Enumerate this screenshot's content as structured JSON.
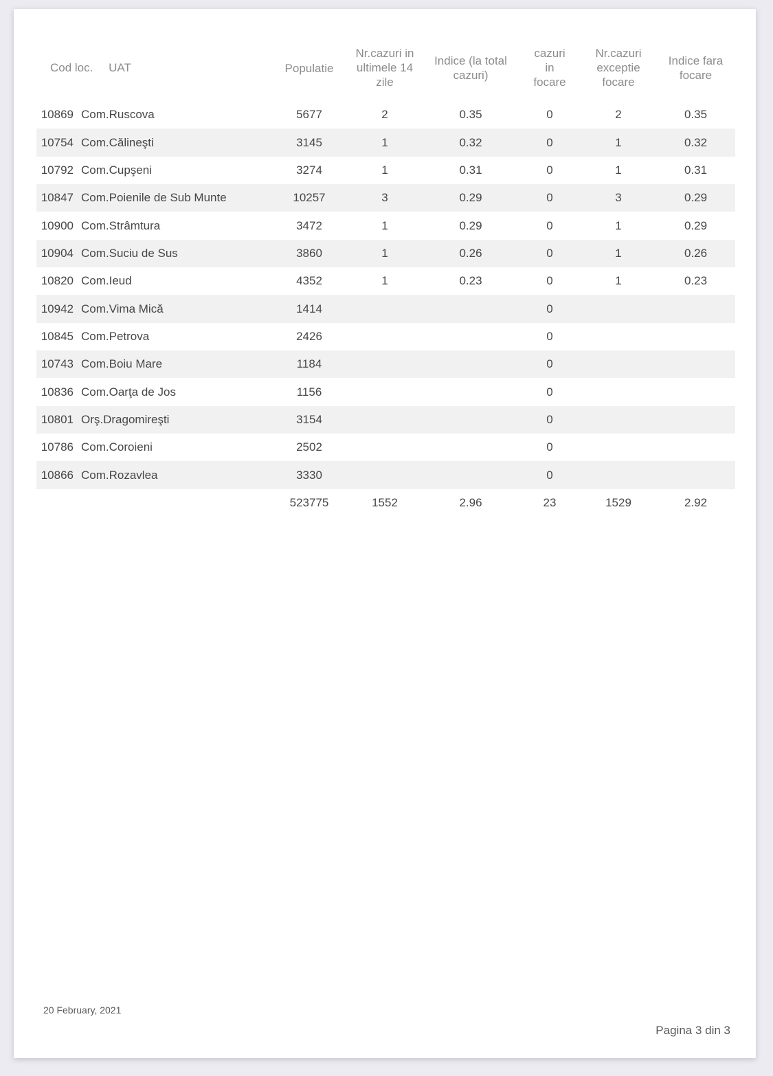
{
  "colors": {
    "page_background": "#ffffff",
    "outer_background": "#ebebf1",
    "row_stripe": "#f1f1f1",
    "body_text": "#474747",
    "header_text": "#8c8c8c"
  },
  "table": {
    "headers": {
      "cod": "Cod loc.",
      "uat": "UAT",
      "populatie": "Populatie",
      "cazuri14": "Nr.cazuri in ultimele 14 zile",
      "indice": "Indice (la total cazuri)",
      "focare": "cazuri in focare",
      "exceptie": "Nr.cazuri exceptie focare",
      "indiceFara": "Indice fara focare"
    },
    "rows": [
      {
        "cod": "10869",
        "uat": "Com.Ruscova",
        "populatie": "5677",
        "cazuri14": "2",
        "indice": "0.35",
        "focare": "0",
        "exceptie": "2",
        "indiceFara": "0.35"
      },
      {
        "cod": "10754",
        "uat": "Com.Călineşti",
        "populatie": "3145",
        "cazuri14": "1",
        "indice": "0.32",
        "focare": "0",
        "exceptie": "1",
        "indiceFara": "0.32"
      },
      {
        "cod": "10792",
        "uat": "Com.Cupşeni",
        "populatie": "3274",
        "cazuri14": "1",
        "indice": "0.31",
        "focare": "0",
        "exceptie": "1",
        "indiceFara": "0.31"
      },
      {
        "cod": "10847",
        "uat": "Com.Poienile de Sub Munte",
        "populatie": "10257",
        "cazuri14": "3",
        "indice": "0.29",
        "focare": "0",
        "exceptie": "3",
        "indiceFara": "0.29"
      },
      {
        "cod": "10900",
        "uat": "Com.Strâmtura",
        "populatie": "3472",
        "cazuri14": "1",
        "indice": "0.29",
        "focare": "0",
        "exceptie": "1",
        "indiceFara": "0.29"
      },
      {
        "cod": "10904",
        "uat": "Com.Suciu de Sus",
        "populatie": "3860",
        "cazuri14": "1",
        "indice": "0.26",
        "focare": "0",
        "exceptie": "1",
        "indiceFara": "0.26"
      },
      {
        "cod": "10820",
        "uat": "Com.Ieud",
        "populatie": "4352",
        "cazuri14": "1",
        "indice": "0.23",
        "focare": "0",
        "exceptie": "1",
        "indiceFara": "0.23"
      },
      {
        "cod": "10942",
        "uat": "Com.Vima Mică",
        "populatie": "1414",
        "cazuri14": "",
        "indice": "",
        "focare": "0",
        "exceptie": "",
        "indiceFara": ""
      },
      {
        "cod": "10845",
        "uat": "Com.Petrova",
        "populatie": "2426",
        "cazuri14": "",
        "indice": "",
        "focare": "0",
        "exceptie": "",
        "indiceFara": ""
      },
      {
        "cod": "10743",
        "uat": "Com.Boiu Mare",
        "populatie": "1184",
        "cazuri14": "",
        "indice": "",
        "focare": "0",
        "exceptie": "",
        "indiceFara": ""
      },
      {
        "cod": "10836",
        "uat": "Com.Oarţa de Jos",
        "populatie": "1156",
        "cazuri14": "",
        "indice": "",
        "focare": "0",
        "exceptie": "",
        "indiceFara": ""
      },
      {
        "cod": "10801",
        "uat": "Orş.Dragomireşti",
        "populatie": "3154",
        "cazuri14": "",
        "indice": "",
        "focare": "0",
        "exceptie": "",
        "indiceFara": ""
      },
      {
        "cod": "10786",
        "uat": "Com.Coroieni",
        "populatie": "2502",
        "cazuri14": "",
        "indice": "",
        "focare": "0",
        "exceptie": "",
        "indiceFara": ""
      },
      {
        "cod": "10866",
        "uat": "Com.Rozavlea",
        "populatie": "3330",
        "cazuri14": "",
        "indice": "",
        "focare": "0",
        "exceptie": "",
        "indiceFara": ""
      }
    ],
    "totals": {
      "populatie": "523775",
      "cazuri14": "1552",
      "indice": "2.96",
      "focare": "23",
      "exceptie": "1529",
      "indiceFara": "2.92"
    }
  },
  "footer": {
    "date": "20 February, 2021",
    "page": "Pagina 3 din 3"
  }
}
